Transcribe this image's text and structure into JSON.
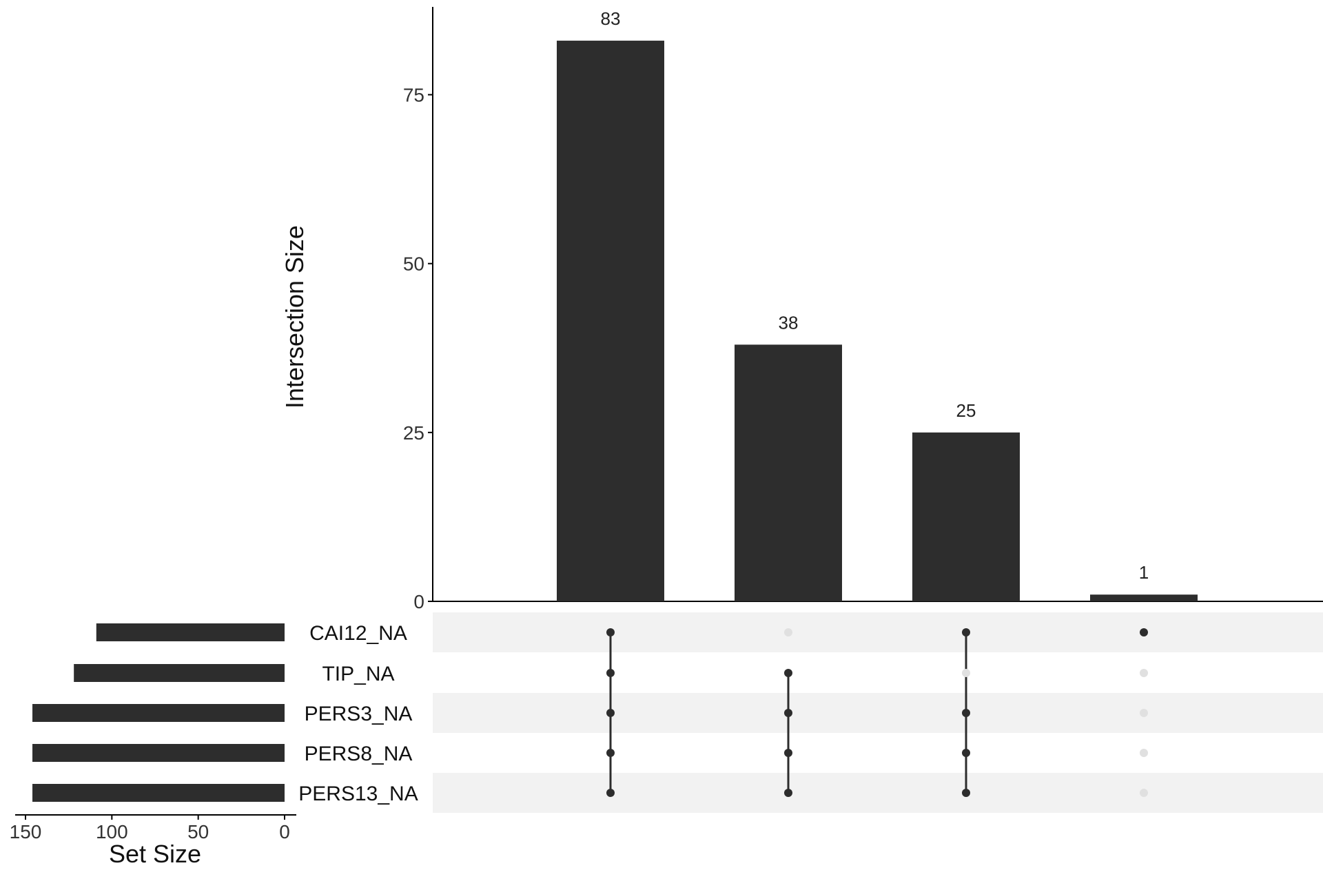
{
  "chart_data": {
    "type": "upset",
    "sets": [
      "CAI12_NA",
      "TIP_NA",
      "PERS3_NA",
      "PERS8_NA",
      "PERS13_NA"
    ],
    "set_sizes": [
      109,
      122,
      146,
      146,
      146
    ],
    "set_size_axis": {
      "label": "Set Size",
      "range": [
        150,
        0
      ],
      "ticks": [
        "150",
        "100",
        "50",
        "0"
      ],
      "tick_values": [
        150,
        100,
        50,
        0
      ]
    },
    "intersection_axis": {
      "label": "Intersection Size",
      "range": [
        0,
        88
      ],
      "ticks": [
        "0",
        "25",
        "50",
        "75"
      ],
      "tick_values": [
        0,
        25,
        50,
        75
      ]
    },
    "intersections": [
      {
        "value": 83,
        "label": "83",
        "members": [
          true,
          true,
          true,
          true,
          true
        ]
      },
      {
        "value": 38,
        "label": "38",
        "members": [
          false,
          true,
          true,
          true,
          true
        ]
      },
      {
        "value": 25,
        "label": "25",
        "members": [
          true,
          false,
          true,
          true,
          true
        ]
      },
      {
        "value": 1,
        "label": "1",
        "members": [
          true,
          false,
          false,
          false,
          false
        ]
      }
    ],
    "colors": {
      "bar": "#2d2d2d",
      "dot_active": "#2d2d2d",
      "dot_inactive": "#e0e0e0",
      "stripe": "#f2f2f2",
      "axis": "#000000"
    }
  }
}
